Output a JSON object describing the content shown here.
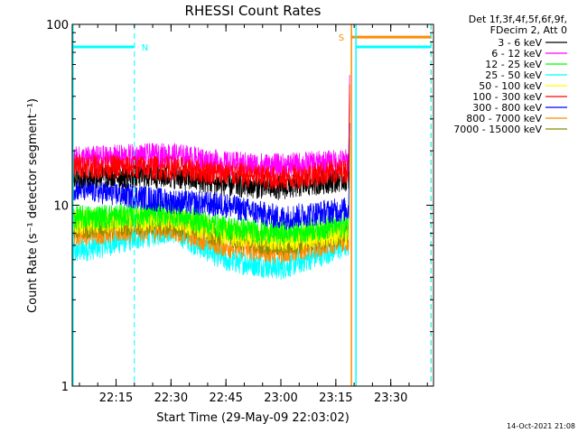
{
  "chart_data": {
    "type": "line",
    "title": "RHESSI Count Rates",
    "xlabel": "Start Time (29-May-09 22:03:02)",
    "ylabel": "Count Rate (s⁻¹ detector segment⁻¹)",
    "yscale": "log",
    "ylim": [
      1,
      100
    ],
    "y_ticks": [
      "1",
      "10",
      "100"
    ],
    "xlim": [
      "22:03:02",
      "23:41:40"
    ],
    "x_ticks": [
      "22:15",
      "22:30",
      "22:45",
      "23:00",
      "23:15",
      "23:30"
    ],
    "legend_header": [
      "Det 1f,3f,4f,5f,6f,9f,",
      "FDecim 2, Att 0"
    ],
    "legend_position": "right",
    "series": [
      {
        "name": "3 - 6 keV",
        "color": "#000000",
        "envelope": [
          [
            "22:03",
            14.5
          ],
          [
            "22:30",
            14.5
          ],
          [
            "22:45",
            13
          ],
          [
            "23:00",
            12.5
          ],
          [
            "23:18",
            14
          ]
        ]
      },
      {
        "name": "6 - 12 keV",
        "color": "#ff00ff",
        "envelope": [
          [
            "22:03",
            18
          ],
          [
            "22:30",
            19
          ],
          [
            "22:45",
            17
          ],
          [
            "23:00",
            16.5
          ],
          [
            "23:18",
            17.5
          ]
        ]
      },
      {
        "name": "12 - 25 keV",
        "color": "#00ff00",
        "envelope": [
          [
            "22:03",
            8.5
          ],
          [
            "22:30",
            9
          ],
          [
            "22:45",
            7.5
          ],
          [
            "23:00",
            7
          ],
          [
            "23:18",
            7.8
          ]
        ]
      },
      {
        "name": "25 - 50 keV",
        "color": "#00ffff",
        "envelope": [
          [
            "22:03",
            5.5
          ],
          [
            "22:30",
            7.3
          ],
          [
            "22:45",
            5
          ],
          [
            "23:00",
            4.5
          ],
          [
            "23:18",
            6
          ]
        ]
      },
      {
        "name": "50 - 100 keV",
        "color": "#ffff00",
        "envelope": [
          [
            "22:03",
            8
          ],
          [
            "22:30",
            8.5
          ],
          [
            "22:45",
            7
          ],
          [
            "23:00",
            6.5
          ],
          [
            "23:18",
            7
          ]
        ]
      },
      {
        "name": "100 - 300 keV",
        "color": "#ff0000",
        "envelope": [
          [
            "22:03",
            16.5
          ],
          [
            "22:30",
            16
          ],
          [
            "22:45",
            15
          ],
          [
            "23:00",
            14
          ],
          [
            "23:18",
            15.5
          ]
        ]
      },
      {
        "name": "300 - 800 keV",
        "color": "#0000ff",
        "envelope": [
          [
            "22:03",
            12.5
          ],
          [
            "22:30",
            10.5
          ],
          [
            "22:45",
            10
          ],
          [
            "23:00",
            8.5
          ],
          [
            "23:18",
            9.5
          ]
        ]
      },
      {
        "name": "800 - 7000 keV",
        "color": "#ff8c00",
        "envelope": [
          [
            "22:03",
            7
          ],
          [
            "22:30",
            7.5
          ],
          [
            "22:45",
            6
          ],
          [
            "23:00",
            5.5
          ],
          [
            "23:18",
            6.5
          ]
        ]
      },
      {
        "name": "7000 - 15000 keV",
        "color": "#8c8c00",
        "envelope": [
          [
            "22:03",
            7.5
          ],
          [
            "22:30",
            8
          ],
          [
            "22:45",
            6.8
          ],
          [
            "23:00",
            6
          ],
          [
            "23:18",
            7
          ]
        ]
      }
    ],
    "data_end": "23:18:30",
    "flags": [
      {
        "label": "N",
        "color": "#00ffff",
        "start": "22:03:02",
        "end": "22:20:00"
      },
      {
        "label": "S",
        "color": "#ff8c00",
        "start": "23:19:15",
        "end": "23:41:00"
      },
      {
        "label": "",
        "color": "#00ffff",
        "start": "23:20:30",
        "end": "23:41:00"
      }
    ],
    "grid": false
  },
  "footer": {
    "timestamp": "14-Oct-2021 21:08"
  }
}
